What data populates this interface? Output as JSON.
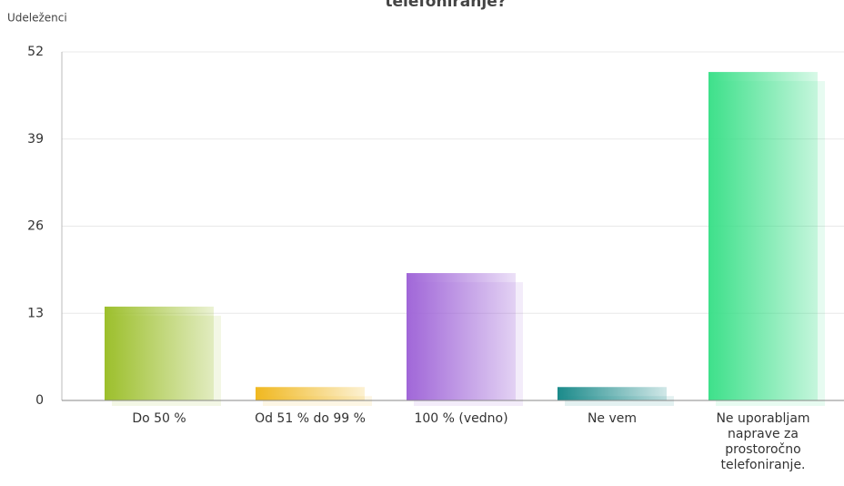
{
  "chart_data": {
    "type": "bar",
    "title": "telefoniranje?",
    "y_label": "Udeleženci",
    "categories": [
      "Do 50 %",
      "Od 51 % do 99 %",
      "100 % (vedno)",
      "Ne vem",
      "Ne uporabljam naprave za prostoročno telefoniranje."
    ],
    "values": [
      14,
      2,
      19,
      2,
      49
    ],
    "colors": [
      "#9cbf2b",
      "#f0b820",
      "#a066d8",
      "#1a8a8a",
      "#3de08a"
    ],
    "ylim": [
      0,
      52
    ],
    "yticks": [
      0,
      13,
      26,
      39,
      52
    ],
    "grid": true
  }
}
